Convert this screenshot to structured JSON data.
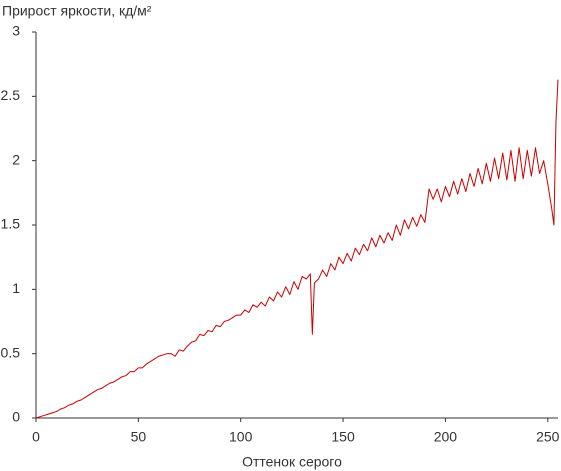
{
  "chart_data": {
    "type": "line",
    "title": "Прирост яркости, кд/м²",
    "x_label": "Оттенок серого",
    "xlim": [
      0,
      255
    ],
    "xticks": [
      0,
      50,
      100,
      150,
      200,
      250
    ],
    "ylim": [
      0,
      3
    ],
    "yticks": [
      0,
      0.5,
      1,
      1.5,
      2,
      2.5,
      3
    ],
    "grid": false,
    "series": [
      {
        "color": "#cc0000",
        "x": [
          0,
          2,
          4,
          6,
          8,
          10,
          12,
          14,
          16,
          18,
          20,
          22,
          24,
          26,
          28,
          30,
          32,
          34,
          36,
          38,
          40,
          42,
          44,
          46,
          48,
          50,
          52,
          54,
          56,
          58,
          60,
          62,
          64,
          66,
          68,
          70,
          72,
          74,
          76,
          78,
          80,
          82,
          84,
          86,
          88,
          90,
          92,
          94,
          96,
          98,
          100,
          102,
          104,
          106,
          108,
          110,
          112,
          114,
          116,
          118,
          120,
          122,
          124,
          126,
          128,
          130,
          132,
          134,
          135,
          136,
          138,
          140,
          142,
          144,
          146,
          148,
          150,
          152,
          154,
          156,
          158,
          160,
          162,
          164,
          166,
          168,
          170,
          172,
          174,
          176,
          178,
          180,
          182,
          184,
          186,
          188,
          190,
          192,
          194,
          196,
          198,
          200,
          202,
          204,
          206,
          208,
          210,
          212,
          214,
          216,
          218,
          220,
          222,
          224,
          226,
          228,
          230,
          232,
          234,
          236,
          238,
          240,
          242,
          244,
          246,
          248,
          250,
          252,
          253,
          254,
          255
        ],
        "values": [
          0,
          0.01,
          0.02,
          0.03,
          0.04,
          0.05,
          0.07,
          0.08,
          0.1,
          0.11,
          0.13,
          0.14,
          0.16,
          0.18,
          0.2,
          0.22,
          0.23,
          0.25,
          0.27,
          0.28,
          0.3,
          0.32,
          0.33,
          0.36,
          0.36,
          0.39,
          0.39,
          0.42,
          0.44,
          0.46,
          0.48,
          0.49,
          0.5,
          0.5,
          0.48,
          0.53,
          0.52,
          0.56,
          0.59,
          0.6,
          0.65,
          0.64,
          0.68,
          0.67,
          0.72,
          0.71,
          0.75,
          0.76,
          0.78,
          0.8,
          0.8,
          0.84,
          0.82,
          0.88,
          0.86,
          0.9,
          0.87,
          0.94,
          0.91,
          0.98,
          0.94,
          1.02,
          0.96,
          1.06,
          1.0,
          1.1,
          1.08,
          1.12,
          0.65,
          1.05,
          1.08,
          1.15,
          1.1,
          1.2,
          1.15,
          1.25,
          1.2,
          1.28,
          1.22,
          1.32,
          1.27,
          1.35,
          1.3,
          1.4,
          1.33,
          1.42,
          1.36,
          1.44,
          1.38,
          1.5,
          1.42,
          1.54,
          1.47,
          1.56,
          1.49,
          1.58,
          1.52,
          1.78,
          1.7,
          1.78,
          1.68,
          1.8,
          1.72,
          1.84,
          1.74,
          1.86,
          1.76,
          1.9,
          1.8,
          1.94,
          1.82,
          1.98,
          1.84,
          2.02,
          1.86,
          2.06,
          1.85,
          2.08,
          1.84,
          2.1,
          1.86,
          2.08,
          1.88,
          2.1,
          1.9,
          2.0,
          1.82,
          1.62,
          1.5,
          2.3,
          2.63
        ]
      }
    ]
  }
}
